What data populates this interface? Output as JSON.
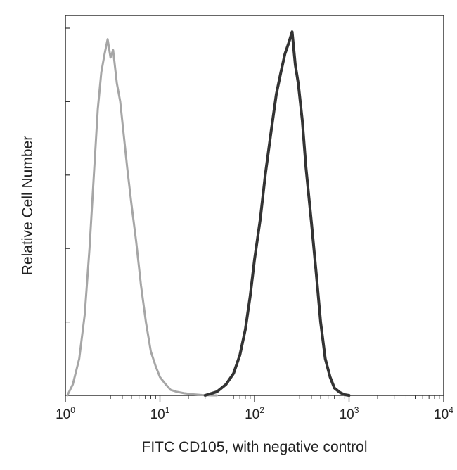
{
  "chart_data": {
    "type": "line",
    "title": "",
    "xlabel": "FITC CD105, with negative control",
    "ylabel": "Relative Cell Number",
    "x_scale": "log",
    "xlim": [
      1,
      10000
    ],
    "ylim": [
      0,
      1
    ],
    "x_ticks": [
      {
        "value": 1,
        "base": "10",
        "exp": "0"
      },
      {
        "value": 10,
        "base": "10",
        "exp": "1"
      },
      {
        "value": 100,
        "base": "10",
        "exp": "2"
      },
      {
        "value": 1000,
        "base": "10",
        "exp": "3"
      },
      {
        "value": 10000,
        "base": "10",
        "exp": "4"
      }
    ],
    "grid": false,
    "legend": "none",
    "series": [
      {
        "role": "negative control",
        "color": "#a6a6a6",
        "x": [
          1.05,
          1.2,
          1.4,
          1.6,
          1.8,
          2.0,
          2.2,
          2.4,
          2.6,
          2.8,
          3.0,
          3.2,
          3.5,
          3.8,
          4.1,
          4.5,
          5.0,
          5.6,
          6.3,
          7.1,
          8.0,
          9.0,
          10.0,
          11.5,
          13.0,
          15.0,
          18.0,
          22.0,
          28.0,
          35.0,
          40.0
        ],
        "y": [
          0.0,
          0.03,
          0.1,
          0.22,
          0.4,
          0.6,
          0.78,
          0.88,
          0.93,
          0.97,
          0.92,
          0.94,
          0.85,
          0.8,
          0.72,
          0.62,
          0.52,
          0.42,
          0.3,
          0.2,
          0.12,
          0.08,
          0.05,
          0.03,
          0.015,
          0.01,
          0.006,
          0.003,
          0.001,
          0.0,
          0.0
        ]
      },
      {
        "role": "FITC CD105",
        "color": "#333333",
        "x": [
          30,
          40,
          50,
          60,
          70,
          80,
          90,
          100,
          115,
          130,
          150,
          170,
          190,
          210,
          230,
          250,
          270,
          290,
          320,
          350,
          400,
          450,
          500,
          560,
          630,
          700,
          800,
          900,
          1000
        ],
        "y": [
          0.0,
          0.01,
          0.03,
          0.06,
          0.11,
          0.18,
          0.27,
          0.37,
          0.48,
          0.6,
          0.72,
          0.82,
          0.88,
          0.93,
          0.96,
          0.99,
          0.9,
          0.85,
          0.75,
          0.62,
          0.47,
          0.33,
          0.2,
          0.1,
          0.05,
          0.02,
          0.008,
          0.002,
          0.0
        ]
      }
    ]
  }
}
